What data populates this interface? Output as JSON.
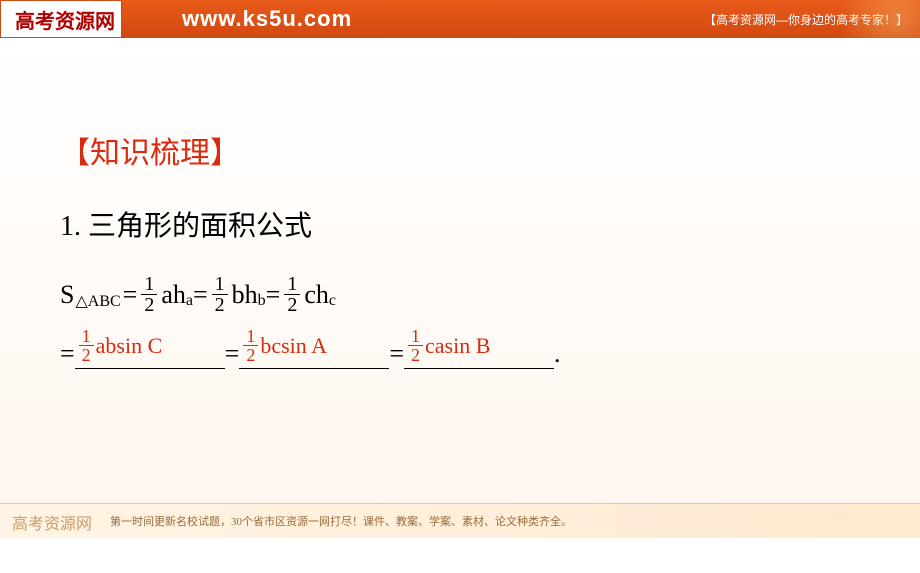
{
  "header": {
    "logo_text": "高考资源网",
    "url": "www.ks5u.com",
    "tagline": "【高考资源网—你身边的高考专家！】"
  },
  "content": {
    "section_title": "【知识梳理】",
    "heading": "1. 三角形的面积公式",
    "formula_base": {
      "lhs_letter": "S",
      "lhs_subscript": "△ABC",
      "eq": "=",
      "frac_num": "1",
      "frac_den": "2",
      "term1_main": "ah",
      "term1_sub": "a",
      "term2_main": "bh",
      "term2_sub": "b",
      "term3_main": "ch",
      "term3_sub": "c"
    },
    "blanks": {
      "prefix": "=",
      "answers": [
        {
          "frac_num": "1",
          "frac_den": "2",
          "expr": "absin C"
        },
        {
          "frac_num": "1",
          "frac_den": "2",
          "expr": "bcsin A"
        },
        {
          "frac_num": "1",
          "frac_den": "2",
          "expr": "casin B"
        }
      ],
      "period": "."
    },
    "colors": {
      "section_title": "#d92b10",
      "body_text": "#000000",
      "answer_red": "#d92b10",
      "header_bg_top": "#e85a1a",
      "header_bg_bottom": "#d14810",
      "logo_text": "#b00000"
    },
    "font_sizes_pt": {
      "section_title": 22,
      "heading": 21,
      "formula": 19,
      "answer": 16,
      "header_url": 16
    }
  },
  "footer": {
    "logo_text": "高考资源网",
    "text": "第一时间更新名校试题，30个省市区资源一网打尽！课件、教案、学案、素材、论文种类齐全。"
  }
}
